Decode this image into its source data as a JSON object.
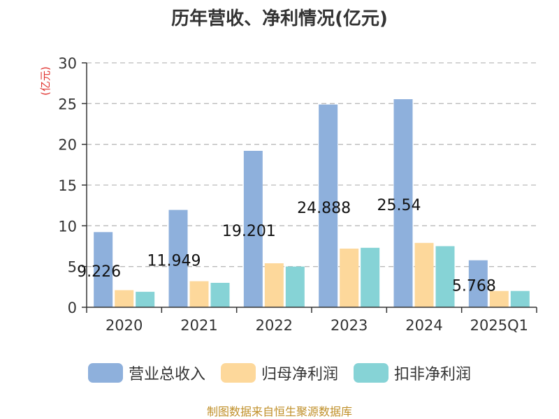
{
  "chart_data": {
    "type": "bar",
    "title": "历年营收、净利情况(亿元)",
    "ylabel": "(亿元)",
    "ylim": [
      0,
      30
    ],
    "yticks": [
      0,
      5,
      10,
      15,
      20,
      25,
      30
    ],
    "categories": [
      "2020",
      "2021",
      "2022",
      "2023",
      "2024",
      "2025Q1"
    ],
    "series": [
      {
        "name": "营业总收入",
        "color": "#8eb0dc",
        "values": [
          9.226,
          11.949,
          19.201,
          24.888,
          25.54,
          5.768
        ]
      },
      {
        "name": "归母净利润",
        "color": "#fdd89b",
        "values": [
          2.1,
          3.2,
          5.4,
          7.2,
          7.9,
          2.0
        ]
      },
      {
        "name": "扣非净利润",
        "color": "#86d3d6",
        "values": [
          1.9,
          3.0,
          5.0,
          7.3,
          7.5,
          2.0
        ]
      }
    ],
    "data_labels": [
      "9.226",
      "11.949",
      "19.201",
      "24.888",
      "25.54",
      "5.768"
    ],
    "grid": true,
    "legend_position": "bottom"
  },
  "source_text": "制图数据来自恒生聚源数据库",
  "colors": {
    "axis": "#333333",
    "grid": "#bbbbbb",
    "ylabel": "#e0302c",
    "source": "#c0902a"
  }
}
